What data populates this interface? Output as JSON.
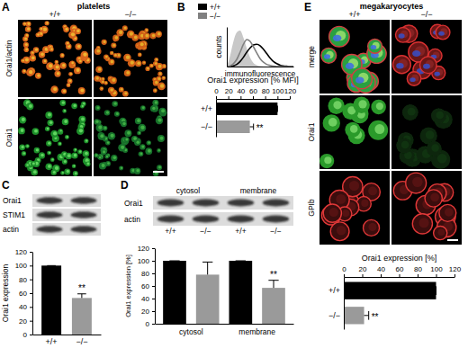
{
  "panel_letters": [
    "A",
    "B",
    "C",
    "D",
    "E"
  ],
  "micrographs": [
    {
      "title": "platelets",
      "columns": [
        "+/+",
        "−/−"
      ],
      "rows": [
        "Orai1/actin",
        "Orai1"
      ]
    },
    {
      "title": "megakaryocytes",
      "columns": [
        "+/+",
        "−/−"
      ],
      "rows": [
        "merge",
        "Orai1",
        "GPIb"
      ]
    }
  ],
  "blots": [
    {
      "rows": [
        "Orai1",
        "STIM1",
        "actin"
      ],
      "lanes": [
        null,
        null
      ]
    },
    {
      "headers": [
        "cytosol",
        "membrane"
      ],
      "rows": [
        "Orai1",
        "actin"
      ],
      "lanes": [
        "+/+",
        "−/−",
        "+/+",
        "−/−"
      ]
    }
  ],
  "chart_data": [
    {
      "type": "line",
      "x_label": "immunofluorescence",
      "y_label": "counts",
      "tick_labels": false,
      "legend": "top-left",
      "xlim": [
        0,
        100
      ],
      "ylim": [
        0,
        110
      ],
      "x": [
        0,
        5,
        10,
        15,
        20,
        25,
        30,
        35,
        40,
        45,
        50,
        55,
        60,
        65,
        70,
        75,
        80,
        85,
        90,
        95,
        100
      ],
      "series": [
        {
          "type": "area",
          "color": "#c8c8c8",
          "values": [
            0,
            30,
            70,
            95,
            100,
            80,
            50,
            25,
            10,
            4,
            1,
            0,
            0,
            0,
            0,
            0,
            0,
            0,
            0,
            0,
            0
          ]
        },
        {
          "name": "+/+",
          "color": "#000000",
          "values": [
            0,
            0,
            2,
            6,
            14,
            26,
            40,
            52,
            60,
            62,
            58,
            48,
            36,
            24,
            14,
            8,
            4,
            2,
            1,
            0,
            0
          ]
        },
        {
          "name": "−/−",
          "color": "#808080",
          "values": [
            0,
            2,
            8,
            20,
            40,
            62,
            75,
            70,
            55,
            38,
            22,
            12,
            6,
            3,
            1,
            0,
            0,
            0,
            0,
            0,
            0
          ]
        }
      ]
    },
    {
      "type": "bar",
      "orientation": "horizontal",
      "x_label": "Orai1 expression [% MFI]",
      "categories": [
        "+/+",
        "−/−"
      ],
      "values": [
        100,
        55
      ],
      "errors": [
        0,
        6
      ],
      "colors": [
        "#000000",
        "#9a9a9a"
      ],
      "xlim": [
        0,
        120
      ],
      "xticks": [
        0,
        20,
        40,
        60,
        80,
        100,
        120
      ],
      "annotations": [
        {
          "text": "**",
          "index": 1
        }
      ]
    },
    {
      "type": "bar",
      "y_label": "Orai1 expression",
      "categories": [
        "+/+",
        "−/−"
      ],
      "values": [
        100,
        53
      ],
      "errors": [
        0,
        6
      ],
      "colors": [
        "#000000",
        "#9a9a9a"
      ],
      "ylim": [
        0,
        120
      ],
      "yticks": [
        0,
        20,
        40,
        60,
        80,
        100,
        120
      ],
      "annotations": [
        {
          "text": "**",
          "index": 1
        }
      ]
    },
    {
      "type": "bar",
      "y_label": "Orai1 expression [%]",
      "categories": [
        null,
        null,
        null,
        null
      ],
      "groups": [
        {
          "name": "cytosol",
          "count": 2
        },
        {
          "name": "membrane",
          "count": 2
        }
      ],
      "values": [
        100,
        78,
        100,
        57
      ],
      "errors": [
        0,
        20,
        0,
        12
      ],
      "colors": [
        "#000000",
        "#9a9a9a",
        "#000000",
        "#9a9a9a"
      ],
      "ylim": [
        0,
        120
      ],
      "yticks": [
        0,
        20,
        40,
        60,
        80,
        100,
        120
      ],
      "annotations": [
        {
          "text": "**",
          "index": 3
        }
      ]
    },
    {
      "type": "bar",
      "orientation": "horizontal",
      "x_label": "Orai1 expression [%]",
      "categories": [
        "+/+",
        "−/−"
      ],
      "values": [
        100,
        22
      ],
      "errors": [
        0,
        5
      ],
      "colors": [
        "#000000",
        "#9a9a9a"
      ],
      "xlim": [
        0,
        120
      ],
      "xticks": [
        0,
        20,
        40,
        60,
        80,
        100,
        120
      ],
      "annotations": [
        {
          "text": "**",
          "index": 1
        }
      ]
    }
  ]
}
